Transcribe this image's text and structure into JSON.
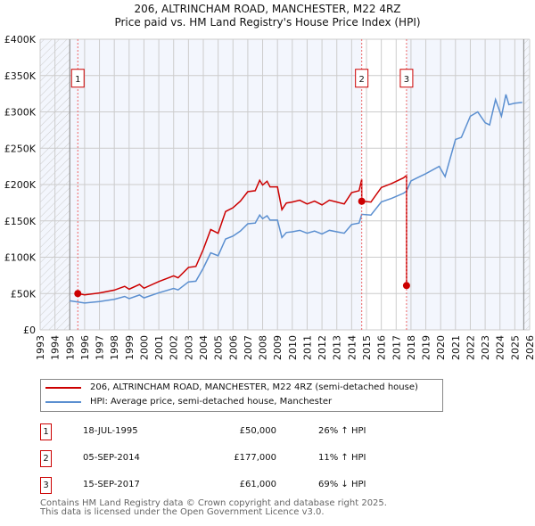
{
  "chart_data": {
    "type": "line",
    "title": "206, ALTRINCHAM ROAD, MANCHESTER, M22 4RZ",
    "subtitle": "Price paid vs. HM Land Registry's House Price Index (HPI)",
    "xlim": [
      1993,
      2026
    ],
    "ylim": [
      0,
      400
    ],
    "yticks": [
      {
        "v": 0,
        "label": "£0"
      },
      {
        "v": 50,
        "label": "£50K"
      },
      {
        "v": 100,
        "label": "£100K"
      },
      {
        "v": 150,
        "label": "£150K"
      },
      {
        "v": 200,
        "label": "£200K"
      },
      {
        "v": 250,
        "label": "£250K"
      },
      {
        "v": 300,
        "label": "£300K"
      },
      {
        "v": 350,
        "label": "£350K"
      },
      {
        "v": 400,
        "label": "£400K"
      }
    ],
    "xticks": [
      "1993",
      "1994",
      "1995",
      "1996",
      "1997",
      "1998",
      "1999",
      "2000",
      "2001",
      "2002",
      "2003",
      "2004",
      "2005",
      "2006",
      "2007",
      "2008",
      "2009",
      "2010",
      "2011",
      "2012",
      "2013",
      "2014",
      "2015",
      "2016",
      "2017",
      "2018",
      "2019",
      "2020",
      "2021",
      "2022",
      "2023",
      "2024",
      "2025",
      "2026"
    ],
    "grid": true,
    "colors": {
      "price": "#cc0000",
      "hpi": "#5b8fd0"
    },
    "hpi_series": [
      [
        1995.0,
        40
      ],
      [
        1996,
        37
      ],
      [
        1997,
        39
      ],
      [
        1998,
        42
      ],
      [
        1998.7,
        46
      ],
      [
        1999,
        43
      ],
      [
        1999.7,
        48
      ],
      [
        2000,
        44
      ],
      [
        2001,
        51
      ],
      [
        2002,
        57
      ],
      [
        2002.3,
        55
      ],
      [
        2003,
        66
      ],
      [
        2003.5,
        67
      ],
      [
        2004,
        85
      ],
      [
        2004.5,
        106
      ],
      [
        2005,
        102
      ],
      [
        2005.5,
        125
      ],
      [
        2006,
        129
      ],
      [
        2006.5,
        136
      ],
      [
        2007,
        146
      ],
      [
        2007.5,
        147
      ],
      [
        2007.8,
        158
      ],
      [
        2008,
        153
      ],
      [
        2008.3,
        157
      ],
      [
        2008.5,
        151
      ],
      [
        2009,
        151
      ],
      [
        2009.3,
        127
      ],
      [
        2009.6,
        134
      ],
      [
        2010,
        135
      ],
      [
        2010.5,
        137
      ],
      [
        2011,
        133
      ],
      [
        2011.5,
        136
      ],
      [
        2012,
        132
      ],
      [
        2012.5,
        137
      ],
      [
        2013,
        135
      ],
      [
        2013.5,
        133
      ],
      [
        2014,
        145
      ],
      [
        2014.5,
        147
      ],
      [
        2014.68,
        159
      ],
      [
        2015.3,
        158
      ],
      [
        2016,
        176
      ],
      [
        2016.7,
        181
      ],
      [
        2017.5,
        188
      ],
      [
        2017.7,
        191
      ],
      [
        2018,
        205
      ],
      [
        2018.5,
        210
      ],
      [
        2019,
        215
      ],
      [
        2019.9,
        225
      ],
      [
        2020.3,
        211
      ],
      [
        2021,
        262
      ],
      [
        2021.4,
        265
      ],
      [
        2022,
        294
      ],
      [
        2022.5,
        300
      ],
      [
        2023,
        285
      ],
      [
        2023.3,
        282
      ],
      [
        2023.7,
        317
      ],
      [
        2024.1,
        294
      ],
      [
        2024.4,
        324
      ],
      [
        2024.6,
        310
      ],
      [
        2025.0,
        312
      ],
      [
        2025.5,
        313
      ]
    ],
    "sales": [
      {
        "n": "1",
        "date": "18-JUL-1995",
        "t": 1995.54,
        "value": 50,
        "price": "£50,000",
        "hpi": "26% ↑ HPI"
      },
      {
        "n": "2",
        "date": "05-SEP-2014",
        "t": 2014.68,
        "value": 177,
        "price": "£177,000",
        "hpi": "11% ↑ HPI"
      },
      {
        "n": "3",
        "date": "15-SEP-2017",
        "t": 2017.7,
        "value": 61,
        "price": "£61,000",
        "hpi": "69% ↓ HPI"
      }
    ],
    "legend": {
      "placement": "below",
      "price": "206, ALTRINCHAM ROAD, MANCHESTER, M22 4RZ (semi-detached house)",
      "hpi": "HPI: Average price, semi-detached house, Manchester"
    }
  },
  "footer": {
    "line1": "Contains HM Land Registry data © Crown copyright and database right 2025.",
    "line2": "This data is licensed under the Open Government Licence v3.0."
  }
}
